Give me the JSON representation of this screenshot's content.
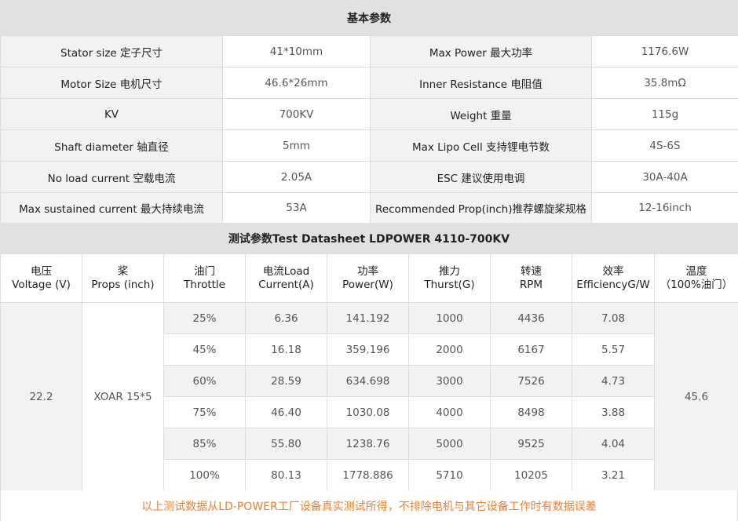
{
  "section1": {
    "title": "基本参数"
  },
  "specs": [
    {
      "label1": "Stator size 定子尺寸",
      "value1": "41*10mm",
      "label2": "Max Power 最大功率",
      "value2": "1176.6W"
    },
    {
      "label1": "Motor Size 电机尺寸",
      "value1": "46.6*26mm",
      "label2": "Inner Resistance 电阻值",
      "value2": "35.8mΩ"
    },
    {
      "label1": "KV",
      "value1": "700KV",
      "label2": "Weight 重量",
      "value2": "115g"
    },
    {
      "label1": "Shaft diameter 轴直径",
      "value1": "5mm",
      "label2": "Max Lipo Cell 支持锂电节数",
      "value2": "4S-6S"
    },
    {
      "label1": "No load current 空载电流",
      "value1": "2.05A",
      "label2": "ESC 建议使用电调",
      "value2": "30A-40A"
    },
    {
      "label1": "Max sustained current 最大持续电流",
      "value1": "53A",
      "label2": "Recommended Prop(inch)推荐螺旋桨规格",
      "value2": "12-16inch"
    }
  ],
  "section2": {
    "title": "测试参数Test Datasheet LDPOWER 4110-700KV"
  },
  "test_headers": [
    {
      "line1": "电压",
      "line2": "Voltage (V)"
    },
    {
      "line1": "桨",
      "line2": "Props (inch)"
    },
    {
      "line1": "油门",
      "line2": "Throttle"
    },
    {
      "line1": "电流Load",
      "line2": "Current(A)"
    },
    {
      "line1": "功率",
      "line2": "Power(W)"
    },
    {
      "line1": "推力",
      "line2": "Thurst(G)"
    },
    {
      "line1": "转速",
      "line2": "RPM"
    },
    {
      "line1": "效率",
      "line2": "EfficiencyG/W"
    },
    {
      "line1": "温度",
      "line2": "（100%油门）"
    }
  ],
  "test": {
    "voltage": "22.2",
    "prop": "XOAR 15*5",
    "temperature": "45.6",
    "rows": [
      {
        "throttle": "25%",
        "current": "6.36",
        "power": "141.192",
        "thrust": "1000",
        "rpm": "4436",
        "efficiency": "7.08"
      },
      {
        "throttle": "45%",
        "current": "16.18",
        "power": "359.196",
        "thrust": "2000",
        "rpm": "6167",
        "efficiency": "5.57"
      },
      {
        "throttle": "60%",
        "current": "28.59",
        "power": "634.698",
        "thrust": "3000",
        "rpm": "7526",
        "efficiency": "4.73"
      },
      {
        "throttle": "75%",
        "current": "46.40",
        "power": "1030.08",
        "thrust": "4000",
        "rpm": "8498",
        "efficiency": "3.88"
      },
      {
        "throttle": "85%",
        "current": "55.80",
        "power": "1238.76",
        "thrust": "5000",
        "rpm": "9525",
        "efficiency": "4.04"
      },
      {
        "throttle": "100%",
        "current": "80.13",
        "power": "1778.886",
        "thrust": "5710",
        "rpm": "10205",
        "efficiency": "3.21"
      }
    ]
  },
  "footer": {
    "note": "以上测试数据从LD-POWER工厂设备真实测试所得，不排除电机与其它设备工作时有数据误差"
  },
  "colors": {
    "header_bg": "#e1e1e1",
    "label_bg": "#f2f2f2",
    "note_color": "#e8803a"
  }
}
